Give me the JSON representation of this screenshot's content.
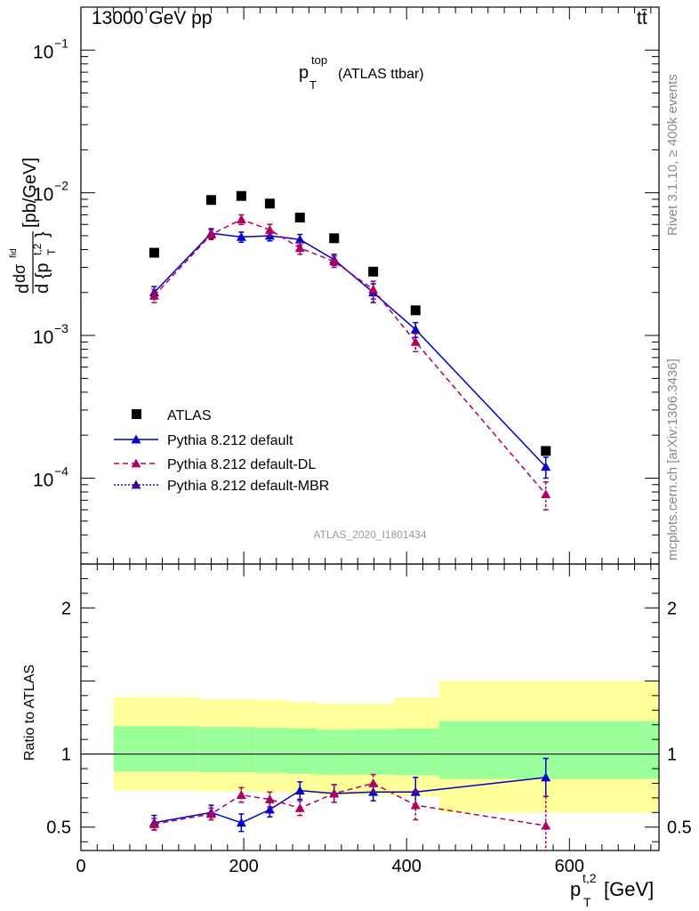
{
  "header": {
    "left": "13000 GeV pp",
    "right": "tt̄",
    "side_top": "Rivet 3.1.10, ≥ 400k events",
    "side_bottom": "mcplots.cern.ch [arXiv:1306.3436]",
    "watermark": "ATLAS_2020_I1801434"
  },
  "chart_data": {
    "type": "scatter",
    "title": "p_T^top (ATLAS ttbar)",
    "title_main": "p",
    "title_sub": "T",
    "title_sup": "top",
    "title_rest": "(ATLAS ttbar)",
    "xlabel": "p_T^{t,2} [GeV]",
    "xlabel_main": "p",
    "xlabel_sub": "T",
    "xlabel_sup": "t,2",
    "xlabel_unit": "[GeV]",
    "ylabel": "d dσ^fid / d {p_T^t,2} [pb/GeV]",
    "xlim": [
      0,
      710
    ],
    "xticks": [
      0,
      200,
      400,
      600
    ],
    "top_panel": {
      "yscale": "log",
      "ylim": [
        2.5e-05,
        0.2
      ],
      "yticks": [
        {
          "value": 0.1,
          "mant": "10",
          "exp": "−1"
        },
        {
          "value": 0.01,
          "mant": "10",
          "exp": "−2"
        },
        {
          "value": 0.001,
          "mant": "10",
          "exp": "−3"
        },
        {
          "value": 0.0001,
          "mant": "10",
          "exp": "−4"
        }
      ],
      "x": [
        90,
        160,
        197,
        232,
        269,
        311,
        359,
        411,
        571
      ],
      "series": [
        {
          "name": "ATLAS",
          "marker": "square",
          "color": "#000000",
          "dash": "",
          "values": [
            0.0038,
            0.0089,
            0.0095,
            0.0084,
            0.0067,
            0.0048,
            0.0028,
            0.0015,
            0.000155
          ],
          "err": [
            0,
            0,
            0,
            0,
            0,
            0,
            0,
            0,
            0
          ]
        },
        {
          "name": "Pythia 8.212 default",
          "marker": "triangle",
          "color": "#0000cc",
          "dash": "",
          "values": [
            0.002,
            0.0052,
            0.0049,
            0.005,
            0.0047,
            0.0034,
            0.002,
            0.0011,
            0.00012
          ],
          "err": [
            0.0002,
            0.0004,
            0.0004,
            0.0004,
            0.0004,
            0.0003,
            0.0003,
            0.00013,
            2e-05
          ]
        },
        {
          "name": "Pythia 8.212 default-DL",
          "marker": "triangle",
          "color": "#b0005f",
          "dash": "6,4",
          "values": [
            0.0019,
            0.0051,
            0.0065,
            0.0055,
            0.0041,
            0.0033,
            0.0021,
            0.0009,
            7.7e-05
          ],
          "err": [
            0.0002,
            0.0004,
            0.0005,
            0.0005,
            0.0004,
            0.0003,
            0.0003,
            0.00013,
            1.7e-05
          ]
        },
        {
          "name": "Pythia 8.212 default-MBR",
          "marker": "triangle",
          "color": "#3a0099",
          "dash": "2,2",
          "values": [],
          "err": []
        }
      ]
    },
    "ratio_panel": {
      "ylabel": "Ratio to ATLAS",
      "yscale": "linear",
      "ylim": [
        0.34,
        2.3
      ],
      "yticks": [
        0.5,
        1,
        2
      ],
      "ytick_labels": [
        "0.5",
        "1",
        "2"
      ],
      "band_edges": [
        40,
        145,
        215,
        255,
        290,
        335,
        385,
        440,
        710
      ],
      "inner_band": {
        "color": "#99ff99",
        "lo": [
          0.88,
          0.875,
          0.87,
          0.865,
          0.86,
          0.86,
          0.855,
          0.83,
          0.825
        ],
        "hi": [
          1.19,
          1.185,
          1.18,
          1.175,
          1.165,
          1.17,
          1.175,
          1.225,
          1.27
        ]
      },
      "outer_band": {
        "color": "#ffff99",
        "lo": [
          0.75,
          0.745,
          0.74,
          0.73,
          0.72,
          0.72,
          0.71,
          0.6,
          0.6
        ],
        "hi": [
          1.39,
          1.375,
          1.37,
          1.355,
          1.345,
          1.345,
          1.385,
          1.5,
          1.51
        ]
      },
      "x": [
        90,
        160,
        197,
        232,
        269,
        311,
        359,
        411,
        571
      ],
      "series": [
        {
          "name": "Pythia 8.212 default",
          "color": "#0000cc",
          "dash": "",
          "values": [
            0.53,
            0.6,
            0.53,
            0.62,
            0.75,
            0.73,
            0.74,
            0.74,
            0.84
          ],
          "err": [
            0.05,
            0.05,
            0.06,
            0.05,
            0.06,
            0.06,
            0.06,
            0.1,
            0.13
          ]
        },
        {
          "name": "Pythia 8.212 default-DL",
          "color": "#b0005f",
          "dash": "6,4",
          "values": [
            0.52,
            0.59,
            0.72,
            0.69,
            0.63,
            0.73,
            0.8,
            0.65,
            0.51
          ],
          "err": [
            0.04,
            0.04,
            0.05,
            0.05,
            0.05,
            0.06,
            0.06,
            0.1,
            0.2
          ]
        }
      ]
    }
  }
}
